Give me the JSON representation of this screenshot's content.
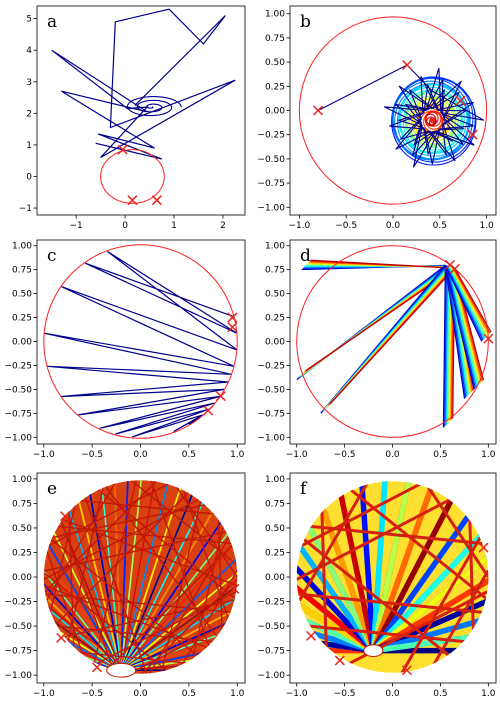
{
  "colors": {
    "spiral": "#00008b",
    "circle": "#ff2020",
    "marker": "#e8241c",
    "axes": "#000000"
  },
  "chart_data": [
    {
      "panel": "a",
      "type": "line",
      "xlim": [
        -1.8,
        2.45
      ],
      "ylim": [
        -1.22,
        5.4
      ],
      "xticks": [
        -1,
        0,
        1,
        2
      ],
      "yticks": [
        -1,
        0,
        1,
        2,
        3,
        4,
        5
      ],
      "circle": {
        "cx": 0.15,
        "cy": 0.0,
        "rx": 0.65,
        "ry": 0.85
      },
      "markers": [
        [
          -0.05,
          0.85
        ],
        [
          0.15,
          -0.75
        ],
        [
          0.65,
          -0.75
        ]
      ],
      "series": [
        {
          "points": [
            [
              -0.05,
              0.85
            ],
            [
              -0.6,
              1.05
            ],
            [
              0.75,
              0.55
            ],
            [
              -0.55,
              1.35
            ],
            [
              0.6,
              0.9
            ],
            [
              -1.3,
              2.7
            ],
            [
              0.45,
              2.05
            ],
            [
              -1.5,
              4.0
            ],
            [
              0.05,
              2.15
            ],
            [
              0.45,
              2.2
            ],
            [
              -0.5,
              0.6
            ],
            [
              2.25,
              3.05
            ],
            [
              -0.3,
              1.55
            ],
            [
              -0.2,
              4.9
            ],
            [
              0.9,
              5.3
            ],
            [
              1.6,
              4.2
            ],
            [
              2.05,
              5.1
            ],
            [
              0.2,
              2.25
            ]
          ]
        }
      ],
      "spiral": {
        "cx": 0.55,
        "cy": 2.2,
        "r0": 0.6,
        "turns": 3
      }
    },
    {
      "panel": "b",
      "type": "line",
      "xlim": [
        -1.1,
        1.1
      ],
      "ylim": [
        -1.08,
        1.08
      ],
      "xticks": [
        -1.0,
        -0.5,
        0.0,
        0.5,
        1.0
      ],
      "yticks": [
        -1.0,
        -0.75,
        -0.5,
        -0.25,
        0.0,
        0.25,
        0.5,
        0.75,
        1.0
      ],
      "circle": {
        "cx": 0.0,
        "cy": 0.0,
        "r": 1.0
      },
      "markers": [
        [
          -0.8,
          0.0
        ],
        [
          0.15,
          0.47
        ],
        [
          0.72,
          0.1
        ],
        [
          0.85,
          -0.25
        ]
      ],
      "vortex": {
        "cx": 0.42,
        "cy": -0.1,
        "radius": 0.5
      }
    },
    {
      "panel": "c",
      "type": "line",
      "xlim": [
        -1.07,
        1.08
      ],
      "ylim": [
        -1.07,
        1.06
      ],
      "xticks": [
        -1.0,
        -0.5,
        0.0,
        0.5,
        1.0
      ],
      "yticks": [
        -1.0,
        -0.75,
        -0.5,
        -0.25,
        0.0,
        0.25,
        0.5,
        0.75,
        1.0
      ],
      "circle": {
        "cx": 0.0,
        "cy": 0.0,
        "r": 1.0
      },
      "markers": [
        [
          0.95,
          0.25
        ],
        [
          0.95,
          0.15
        ],
        [
          0.83,
          -0.57
        ],
        [
          0.7,
          -0.72
        ]
      ],
      "chord_angles_deg": [
        15,
        125,
        5,
        110,
        -5,
        145,
        -15,
        175,
        -20,
        195,
        -25,
        215,
        -30,
        230,
        -35,
        245,
        -40,
        255,
        -45,
        265,
        -50,
        290,
        -52,
        300
      ]
    },
    {
      "panel": "d",
      "type": "line",
      "xlim": [
        -1.07,
        1.08
      ],
      "ylim": [
        -1.07,
        1.06
      ],
      "xticks": [
        -1.0,
        -0.5,
        0.0,
        0.5,
        1.0
      ],
      "yticks": [
        -1.0,
        -0.75,
        -0.5,
        -0.25,
        0.0,
        0.25,
        0.5,
        0.75,
        1.0
      ],
      "circle": {
        "cx": 0.0,
        "cy": 0.0,
        "r": 1.0
      },
      "markers": [
        [
          0.6,
          0.8
        ],
        [
          0.65,
          0.76
        ],
        [
          1.0,
          0.03
        ]
      ],
      "fan_origin": [
        0.6,
        0.78
      ],
      "fan_ends": [
        [
          -0.9,
          0.8
        ],
        [
          -0.95,
          -0.35
        ],
        [
          -0.7,
          -0.7
        ],
        [
          0.58,
          -0.85
        ],
        [
          0.8,
          -0.55
        ],
        [
          0.9,
          -0.45
        ],
        [
          0.98,
          0.05
        ]
      ]
    },
    {
      "panel": "e",
      "type": "line",
      "xlim": [
        -1.07,
        1.08
      ],
      "ylim": [
        -1.08,
        1.06
      ],
      "xticks": [
        -1.0,
        -0.5,
        0.0,
        0.5,
        1.0
      ],
      "yticks": [
        -1.0,
        -0.75,
        -0.5,
        -0.25,
        0.0,
        0.25,
        0.5,
        0.75,
        1.0
      ],
      "circle": {
        "cx": 0.0,
        "cy": 0.0,
        "r": 1.0
      },
      "hole": {
        "cx": -0.2,
        "cy": -0.95,
        "rx": 0.15,
        "ry": 0.07
      },
      "markers": [
        [
          -0.78,
          0.62
        ],
        [
          0.97,
          -0.12
        ],
        [
          -0.82,
          -0.62
        ],
        [
          -0.45,
          -0.92
        ]
      ]
    },
    {
      "panel": "f",
      "type": "line",
      "xlim": [
        -1.07,
        1.08
      ],
      "ylim": [
        -1.08,
        1.06
      ],
      "xticks": [
        -1.0,
        -0.5,
        0.0,
        0.5,
        1.0
      ],
      "yticks": [
        -1.0,
        -0.75,
        -0.5,
        -0.25,
        0.0,
        0.25,
        0.5,
        0.75,
        1.0
      ],
      "circle": {
        "cx": 0.0,
        "cy": 0.0,
        "r": 1.0
      },
      "hole": {
        "cx": -0.2,
        "cy": -0.75,
        "rx": 0.1,
        "ry": 0.06
      },
      "markers": [
        [
          0.95,
          0.3
        ],
        [
          -0.85,
          -0.6
        ],
        [
          -0.55,
          -0.85
        ],
        [
          0.15,
          -0.95
        ]
      ]
    }
  ]
}
